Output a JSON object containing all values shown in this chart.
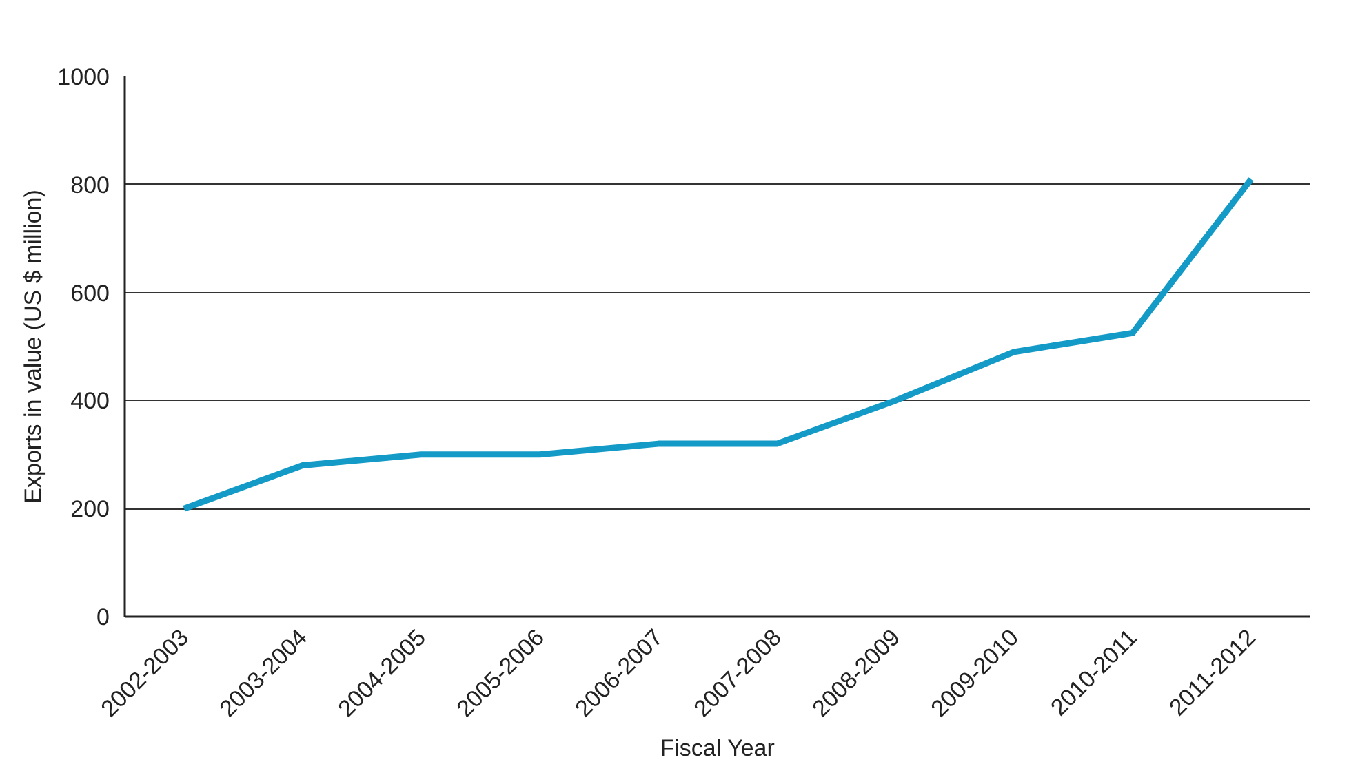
{
  "chart_data": {
    "type": "line",
    "xlabel": "Fiscal Year",
    "ylabel": "Exports in value (US $ million)",
    "categories": [
      "2002-2003",
      "2003-2004",
      "2004-2005",
      "2005-2006",
      "2006-2007",
      "2007-2008",
      "2008-2009",
      "2009-2010",
      "2010-2011",
      "2011-2012"
    ],
    "series": [
      {
        "color": "#149ac6",
        "values": [
          200,
          280,
          300,
          300,
          320,
          320,
          400,
          490,
          525,
          810
        ]
      }
    ],
    "ylim": [
      0,
      1000
    ],
    "yticks": [
      0,
      200,
      400,
      600,
      800,
      1000
    ],
    "grid": "y",
    "marker": "none",
    "line_style": "solid"
  }
}
